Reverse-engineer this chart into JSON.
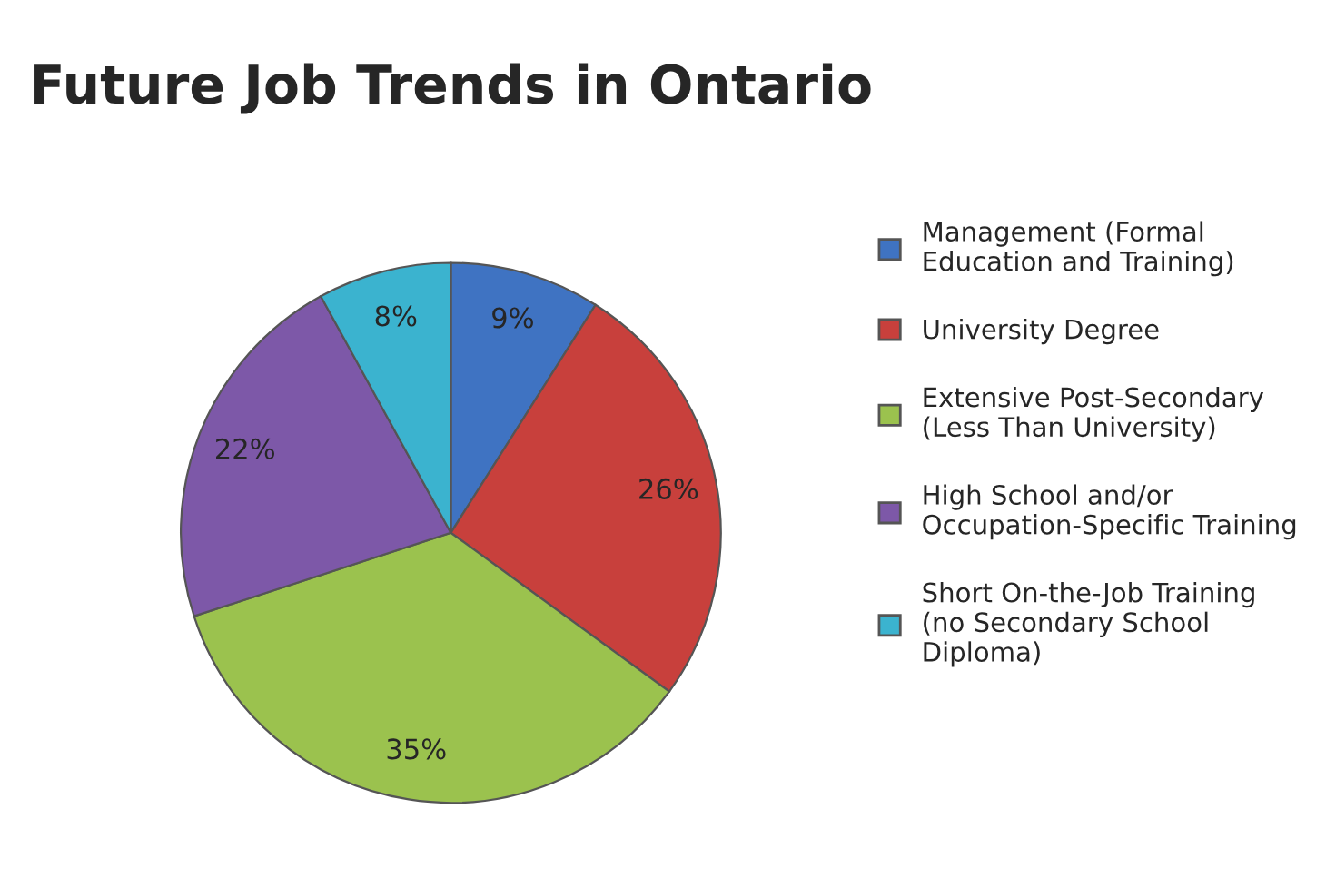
{
  "chart_data": {
    "type": "pie",
    "title": "Future Job Trends in Ontario",
    "categories": [
      "Management (Formal\nEducation and Training)",
      "University Degree",
      "Extensive Post-Secondary\n(Less Than University)",
      "High School and/or\nOccupation-Specific Training",
      "Short On-the-Job Training\n(no Secondary School\nDiploma)"
    ],
    "values": [
      9,
      26,
      35,
      22,
      8
    ],
    "colors": [
      "#3f73c2",
      "#c8403c",
      "#9bc24e",
      "#7d58a8",
      "#3bb3cf"
    ],
    "value_labels": [
      "9%",
      "26%",
      "35%",
      "22%",
      "8%"
    ],
    "legend": "right"
  }
}
